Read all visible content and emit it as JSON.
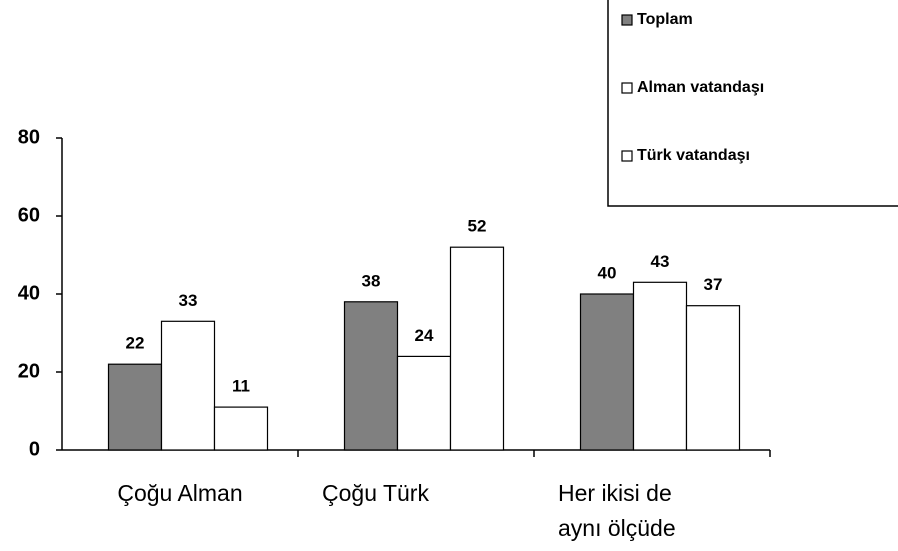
{
  "chart_data": {
    "type": "bar",
    "categories": [
      "Çoğu Alman",
      "Çoğu Türk",
      "Her ikisi de aynı ölçüde"
    ],
    "series": [
      {
        "name": "Toplam",
        "color": "#808080",
        "values": [
          22,
          38,
          40
        ]
      },
      {
        "name": "Alman vatandaşı",
        "color": "#ffffff",
        "values": [
          33,
          24,
          43
        ]
      },
      {
        "name": "Türk vatandaşı",
        "color": "#ffffff",
        "values": [
          11,
          52,
          37
        ]
      }
    ],
    "ylim": [
      0,
      80
    ],
    "yticks": [
      0,
      20,
      40,
      60,
      80
    ],
    "legend": "top-right"
  }
}
